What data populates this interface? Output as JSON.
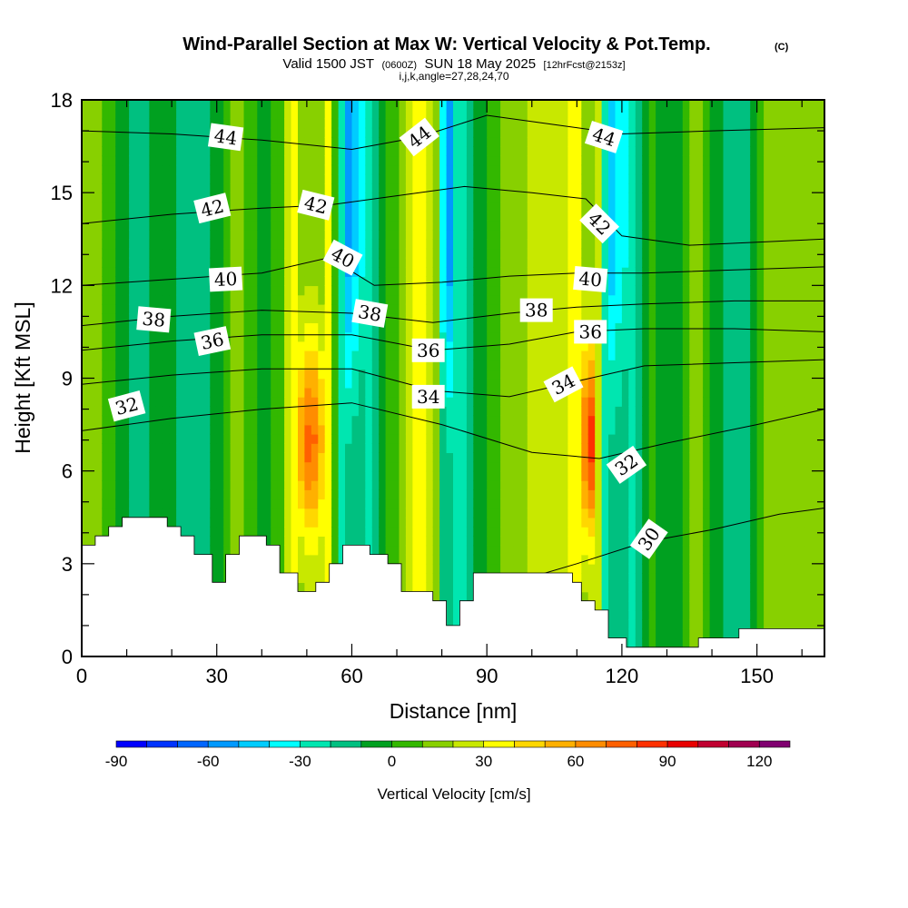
{
  "header": {
    "title": "Wind-Parallel Section at Max W: Vertical Velocity & Pot.Temp.",
    "copyright": "(C)",
    "valid_prefix": "Valid 1500 JST",
    "valid_utc": "(0600Z)",
    "valid_date": "SUN 18 May 2025",
    "forecast_info": "[12hrFcst@2153z]",
    "indices": "i,j,k,angle=27,28,24,70"
  },
  "chart_data": {
    "type": "heatmap",
    "xlabel": "Distance [nm]",
    "ylabel": "Height [Kft MSL]",
    "xlim": [
      0,
      165
    ],
    "ylim": [
      0,
      18
    ],
    "xticks": [
      0,
      30,
      60,
      90,
      120,
      150
    ],
    "yticks": [
      0,
      3,
      6,
      9,
      12,
      15,
      18
    ],
    "colorbar": {
      "title": "Vertical Velocity [cm/s]",
      "levels": [
        -90,
        -80,
        -70,
        -60,
        -50,
        -40,
        -30,
        -20,
        -10,
        0,
        10,
        20,
        30,
        40,
        50,
        60,
        70,
        80,
        90,
        100,
        110,
        120,
        130
      ],
      "tick_labels": [
        "-90",
        "-60",
        "-30",
        "0",
        "30",
        "60",
        "90",
        "120"
      ],
      "colors": [
        "#0000ff",
        "#0033ff",
        "#0066ff",
        "#0099ff",
        "#00ccff",
        "#00ffff",
        "#00e6b0",
        "#00c080",
        "#00a020",
        "#33b800",
        "#88d000",
        "#c8e800",
        "#ffff00",
        "#ffd700",
        "#ffb000",
        "#ff8c00",
        "#ff6000",
        "#ff3000",
        "#e80000",
        "#c00030",
        "#a00050",
        "#800070",
        "#600090"
      ]
    },
    "velocity_features": [
      {
        "x": 0,
        "w": 14
      },
      {
        "x": 6,
        "w": 8
      },
      {
        "x": 12,
        "w": -18
      },
      {
        "x": 18,
        "w": 2
      },
      {
        "x": 24,
        "w": -20
      },
      {
        "x": 30,
        "w": -8
      },
      {
        "x": 35,
        "w": 20
      },
      {
        "x": 40,
        "w": -10
      },
      {
        "x": 44,
        "w": 5
      },
      {
        "x": 51,
        "w": 80
      },
      {
        "x": 56,
        "w": 15
      },
      {
        "x": 59,
        "w": -55
      },
      {
        "x": 64,
        "w": -20
      },
      {
        "x": 69,
        "w": 5
      },
      {
        "x": 75,
        "w": 35
      },
      {
        "x": 79,
        "w": 10
      },
      {
        "x": 81,
        "w": -70
      },
      {
        "x": 83,
        "w": -30
      },
      {
        "x": 87,
        "w": -10
      },
      {
        "x": 93,
        "w": 10
      },
      {
        "x": 100,
        "w": 22
      },
      {
        "x": 106,
        "w": 20
      },
      {
        "x": 110,
        "w": 35
      },
      {
        "x": 113,
        "w": 92
      },
      {
        "x": 117,
        "w": -50
      },
      {
        "x": 121,
        "w": -30
      },
      {
        "x": 126,
        "w": 5
      },
      {
        "x": 131,
        "w": -10
      },
      {
        "x": 136,
        "w": 15
      },
      {
        "x": 141,
        "w": -5
      },
      {
        "x": 147,
        "w": -20
      },
      {
        "x": 152,
        "w": 10
      },
      {
        "x": 158,
        "w": 20
      },
      {
        "x": 165,
        "w": 15
      }
    ],
    "terrain": [
      {
        "x": 0,
        "h": 3.6
      },
      {
        "x": 3,
        "h": 3.9
      },
      {
        "x": 6,
        "h": 4.2
      },
      {
        "x": 9,
        "h": 4.5
      },
      {
        "x": 19,
        "h": 4.2
      },
      {
        "x": 22,
        "h": 3.9
      },
      {
        "x": 25,
        "h": 3.3
      },
      {
        "x": 29,
        "h": 2.4
      },
      {
        "x": 32,
        "h": 3.3
      },
      {
        "x": 35,
        "h": 3.9
      },
      {
        "x": 41,
        "h": 3.6
      },
      {
        "x": 44,
        "h": 2.7
      },
      {
        "x": 48,
        "h": 2.1
      },
      {
        "x": 52,
        "h": 2.4
      },
      {
        "x": 55,
        "h": 3.0
      },
      {
        "x": 58,
        "h": 3.6
      },
      {
        "x": 64,
        "h": 3.3
      },
      {
        "x": 68,
        "h": 3.0
      },
      {
        "x": 71,
        "h": 2.1
      },
      {
        "x": 78,
        "h": 1.8
      },
      {
        "x": 81,
        "h": 1.0
      },
      {
        "x": 84,
        "h": 1.8
      },
      {
        "x": 87,
        "h": 2.7
      },
      {
        "x": 109,
        "h": 2.4
      },
      {
        "x": 111,
        "h": 1.8
      },
      {
        "x": 114,
        "h": 1.5
      },
      {
        "x": 117,
        "h": 0.6
      },
      {
        "x": 121,
        "h": 0.3
      },
      {
        "x": 128,
        "h": 0.3
      },
      {
        "x": 137,
        "h": 0.6
      },
      {
        "x": 146,
        "h": 0.9
      },
      {
        "x": 153,
        "h": 0.9
      },
      {
        "x": 165,
        "h": 0.9
      }
    ],
    "isentropes": [
      {
        "theta": 30,
        "pts": [
          [
            96,
            2.4
          ],
          [
            110,
            3.0
          ],
          [
            125,
            3.7
          ],
          [
            140,
            4.1
          ],
          [
            155,
            4.6
          ],
          [
            165,
            4.8
          ]
        ]
      },
      {
        "theta": 32,
        "pts": [
          [
            0,
            7.3
          ],
          [
            20,
            7.7
          ],
          [
            40,
            8.0
          ],
          [
            60,
            8.2
          ],
          [
            80,
            7.5
          ],
          [
            100,
            6.6
          ],
          [
            115,
            6.4
          ],
          [
            130,
            6.9
          ],
          [
            150,
            7.5
          ],
          [
            165,
            8.0
          ]
        ]
      },
      {
        "theta": 34,
        "pts": [
          [
            0,
            8.8
          ],
          [
            20,
            9.1
          ],
          [
            40,
            9.3
          ],
          [
            60,
            9.3
          ],
          [
            78,
            8.6
          ],
          [
            95,
            8.4
          ],
          [
            110,
            8.9
          ],
          [
            125,
            9.4
          ],
          [
            145,
            9.5
          ],
          [
            165,
            9.6
          ]
        ]
      },
      {
        "theta": 36,
        "pts": [
          [
            0,
            9.9
          ],
          [
            20,
            10.2
          ],
          [
            40,
            10.4
          ],
          [
            60,
            10.4
          ],
          [
            78,
            9.9
          ],
          [
            95,
            10.1
          ],
          [
            110,
            10.5
          ],
          [
            125,
            10.6
          ],
          [
            145,
            10.6
          ],
          [
            165,
            10.5
          ]
        ]
      },
      {
        "theta": 38,
        "pts": [
          [
            0,
            10.7
          ],
          [
            20,
            11.0
          ],
          [
            40,
            11.2
          ],
          [
            60,
            11.1
          ],
          [
            78,
            10.8
          ],
          [
            95,
            11.1
          ],
          [
            110,
            11.3
          ],
          [
            125,
            11.4
          ],
          [
            145,
            11.5
          ],
          [
            165,
            11.5
          ]
        ]
      },
      {
        "theta": 40,
        "pts": [
          [
            0,
            12.0
          ],
          [
            20,
            12.2
          ],
          [
            40,
            12.4
          ],
          [
            55,
            12.9
          ],
          [
            65,
            12.0
          ],
          [
            80,
            12.1
          ],
          [
            95,
            12.3
          ],
          [
            110,
            12.4
          ],
          [
            125,
            12.4
          ],
          [
            145,
            12.5
          ],
          [
            165,
            12.6
          ]
        ]
      },
      {
        "theta": 42,
        "pts": [
          [
            0,
            14.0
          ],
          [
            20,
            14.3
          ],
          [
            40,
            14.5
          ],
          [
            55,
            14.6
          ],
          [
            70,
            14.9
          ],
          [
            85,
            15.2
          ],
          [
            100,
            15.0
          ],
          [
            112,
            14.8
          ],
          [
            120,
            13.6
          ],
          [
            135,
            13.3
          ],
          [
            150,
            13.4
          ],
          [
            165,
            13.5
          ]
        ]
      },
      {
        "theta": 44,
        "pts": [
          [
            0,
            17.0
          ],
          [
            20,
            16.9
          ],
          [
            40,
            16.7
          ],
          [
            60,
            16.4
          ],
          [
            75,
            16.8
          ],
          [
            90,
            17.5
          ],
          [
            105,
            17.2
          ],
          [
            120,
            16.9
          ],
          [
            140,
            17.0
          ],
          [
            165,
            17.1
          ]
        ]
      }
    ],
    "contour_labels": [
      {
        "text": "44",
        "x": 32,
        "y": 16.8,
        "rot": 8
      },
      {
        "text": "44",
        "x": 75,
        "y": 16.8,
        "rot": -38
      },
      {
        "text": "44",
        "x": 116,
        "y": 16.8,
        "rot": 18
      },
      {
        "text": "42",
        "x": 29,
        "y": 14.5,
        "rot": -14
      },
      {
        "text": "42",
        "x": 52,
        "y": 14.6,
        "rot": 14
      },
      {
        "text": "42",
        "x": 115,
        "y": 14.0,
        "rot": 45
      },
      {
        "text": "40",
        "x": 32,
        "y": 12.2,
        "rot": -3
      },
      {
        "text": "40",
        "x": 58,
        "y": 12.9,
        "rot": 28
      },
      {
        "text": "40",
        "x": 113,
        "y": 12.2,
        "rot": 5
      },
      {
        "text": "38",
        "x": 16,
        "y": 10.9,
        "rot": 5
      },
      {
        "text": "38",
        "x": 64,
        "y": 11.1,
        "rot": 10
      },
      {
        "text": "38",
        "x": 101,
        "y": 11.2,
        "rot": 0
      },
      {
        "text": "36",
        "x": 29,
        "y": 10.2,
        "rot": -12
      },
      {
        "text": "36",
        "x": 77,
        "y": 9.9,
        "rot": 0
      },
      {
        "text": "36",
        "x": 113,
        "y": 10.5,
        "rot": 0
      },
      {
        "text": "34",
        "x": 77,
        "y": 8.4,
        "rot": 0
      },
      {
        "text": "34",
        "x": 107,
        "y": 8.8,
        "rot": -28
      },
      {
        "text": "32",
        "x": 10,
        "y": 8.1,
        "rot": -15
      },
      {
        "text": "32",
        "x": 121,
        "y": 6.2,
        "rot": -35
      },
      {
        "text": "30",
        "x": 126,
        "y": 3.8,
        "rot": -55
      }
    ]
  }
}
